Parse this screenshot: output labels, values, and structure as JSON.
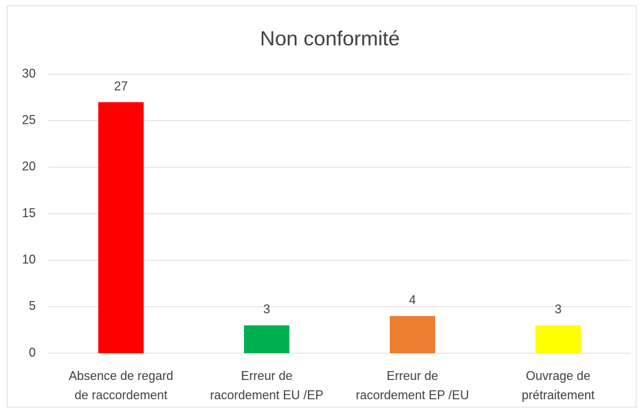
{
  "chart_data": {
    "type": "bar",
    "title": "Non conformité",
    "categories": [
      "Absence de regard\nde raccordement",
      "Erreur de\nracordement EU /EP",
      "Erreur de\nracordement EP /EU",
      "Ouvrage de\nprétraitement"
    ],
    "values": [
      27,
      3,
      4,
      3
    ],
    "colors": [
      "#ff0000",
      "#00b050",
      "#ed7d31",
      "#ffff00"
    ],
    "ylim": [
      0,
      30
    ],
    "yticks": [
      0,
      5,
      10,
      15,
      20,
      25,
      30
    ],
    "grid": true
  }
}
